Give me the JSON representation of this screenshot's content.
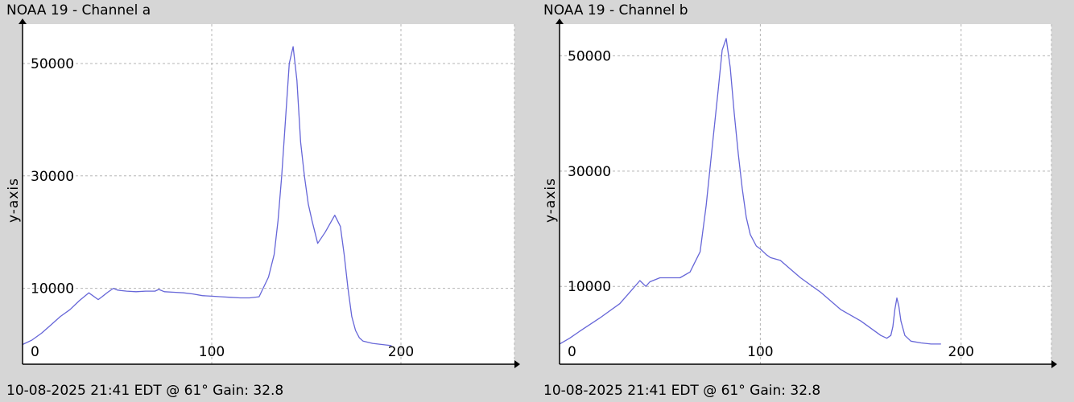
{
  "chart_data": [
    {
      "type": "line",
      "title": "NOAA 19 - Channel a",
      "ylabel": "y-axis",
      "xlabel": "",
      "footer": "10-08-2025 21:41 EDT @ 61° Gain: 32.8",
      "xlim": [
        0,
        260
      ],
      "ylim": [
        -3500,
        57000
      ],
      "x_ticks": [
        0,
        100,
        200
      ],
      "y_ticks": [
        10000,
        30000,
        50000
      ],
      "grid": true,
      "line_color": "#6666d8",
      "series": [
        {
          "x": [
            0,
            5,
            10,
            15,
            20,
            25,
            30,
            35,
            40,
            42,
            45,
            48,
            50,
            52,
            55,
            60,
            65,
            70,
            72,
            75,
            80,
            85,
            90,
            95,
            100,
            105,
            110,
            115,
            120,
            125,
            130,
            133,
            135,
            137,
            139,
            141,
            143,
            145,
            147,
            149,
            151,
            153,
            156,
            160,
            165,
            168,
            170,
            172,
            174,
            176,
            178,
            180,
            185,
            190,
            195
          ],
          "y": [
            0,
            800,
            2000,
            3500,
            5000,
            6200,
            7800,
            9200,
            8000,
            8500,
            9300,
            10000,
            9700,
            9600,
            9500,
            9400,
            9500,
            9500,
            9800,
            9400,
            9300,
            9200,
            9000,
            8700,
            8600,
            8500,
            8400,
            8300,
            8300,
            8500,
            12000,
            16000,
            22000,
            30000,
            40000,
            50000,
            53000,
            47000,
            36000,
            30000,
            25000,
            22000,
            18000,
            20000,
            23000,
            21000,
            16000,
            10000,
            5000,
            2500,
            1200,
            600,
            200,
            0,
            -200
          ]
        }
      ]
    },
    {
      "type": "line",
      "title": "NOAA 19 - Channel b",
      "ylabel": "y-axis",
      "xlabel": "",
      "footer": "10-08-2025 21:41 EDT @ 61° Gain: 32.8",
      "xlim": [
        0,
        245
      ],
      "ylim": [
        -3500,
        55500
      ],
      "x_ticks": [
        0,
        100,
        200
      ],
      "y_ticks": [
        10000,
        30000,
        50000
      ],
      "grid": true,
      "line_color": "#6666d8",
      "series": [
        {
          "x": [
            0,
            5,
            10,
            20,
            30,
            35,
            40,
            43,
            45,
            50,
            55,
            60,
            65,
            70,
            73,
            76,
            79,
            81,
            83,
            85,
            87,
            89,
            91,
            93,
            95,
            98,
            100,
            103,
            105,
            110,
            115,
            120,
            130,
            140,
            150,
            160,
            163,
            165,
            166,
            167,
            168,
            169,
            170,
            172,
            175,
            180,
            185,
            190
          ],
          "y": [
            0,
            1000,
            2200,
            4500,
            7000,
            9000,
            11000,
            10000,
            10800,
            11500,
            11500,
            11500,
            12500,
            16000,
            24000,
            34000,
            44000,
            51000,
            53000,
            48000,
            40000,
            33000,
            27000,
            22000,
            19000,
            17000,
            16500,
            15500,
            15000,
            14500,
            13000,
            11500,
            9000,
            6000,
            4000,
            1500,
            1000,
            1500,
            3000,
            6000,
            8000,
            6500,
            4000,
            1500,
            500,
            200,
            0,
            0
          ]
        }
      ]
    }
  ]
}
